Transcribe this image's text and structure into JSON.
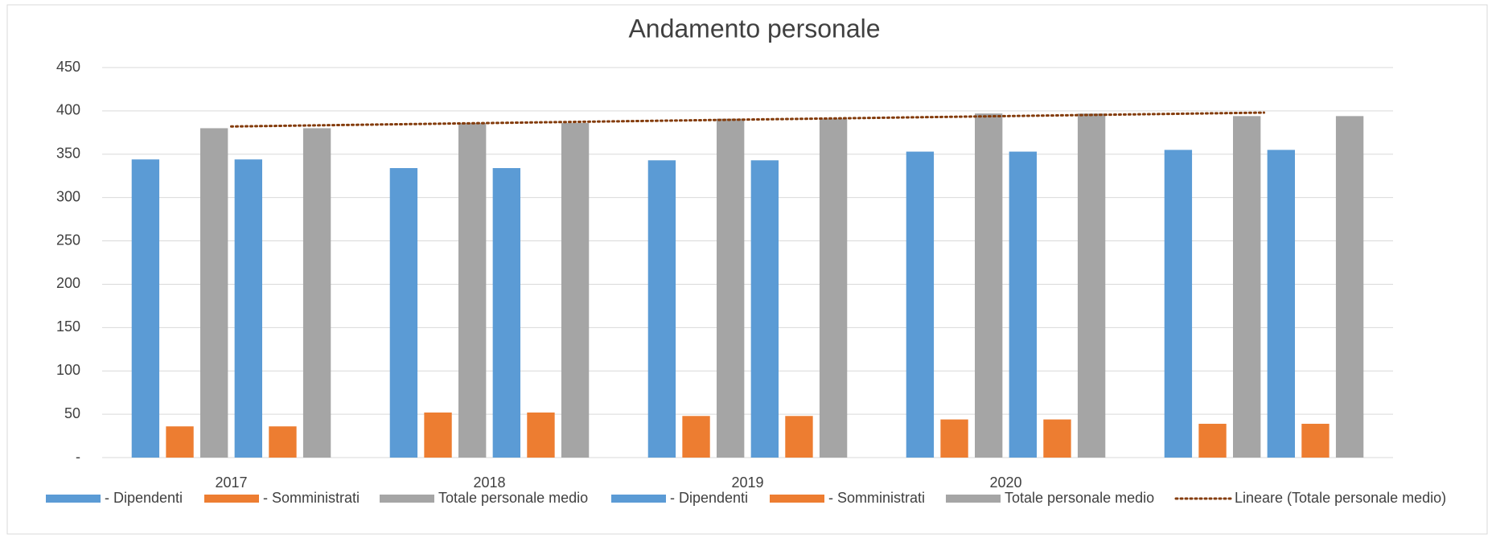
{
  "chart_data": {
    "type": "bar",
    "title": "Andamento personale",
    "categories": [
      "2017",
      "2018",
      "2019",
      "2020",
      null
    ],
    "series": [
      {
        "name": "- Dipendenti",
        "color": "#5b9bd5",
        "values": [
          344,
          334,
          343,
          353,
          355
        ]
      },
      {
        "name": "- Somministrati",
        "color": "#ed7d31",
        "values": [
          36,
          52,
          48,
          44,
          39
        ]
      },
      {
        "name": "Totale personale medio",
        "color": "#a5a5a5",
        "values": [
          380,
          386,
          391,
          397,
          394
        ]
      },
      {
        "name": "- Dipendenti",
        "color": "#5b9bd5",
        "values": [
          344,
          334,
          343,
          353,
          355
        ]
      },
      {
        "name": "- Somministrati",
        "color": "#ed7d31",
        "values": [
          36,
          52,
          48,
          44,
          39
        ]
      },
      {
        "name": "Totale personale medio",
        "color": "#a5a5a5",
        "values": [
          380,
          386,
          391,
          397,
          394
        ]
      },
      {
        "name": "Lineare (Totale personale medio)",
        "color": "#843c0c",
        "style": "dotted",
        "values": [
          382,
          386,
          390,
          394,
          398
        ]
      }
    ],
    "ylim": [
      0,
      450
    ],
    "yticks": [
      {
        "value": 0,
        "label": "-"
      },
      50,
      100,
      150,
      200,
      250,
      300,
      350,
      400,
      450
    ],
    "grid": true,
    "legend": "bottom"
  }
}
